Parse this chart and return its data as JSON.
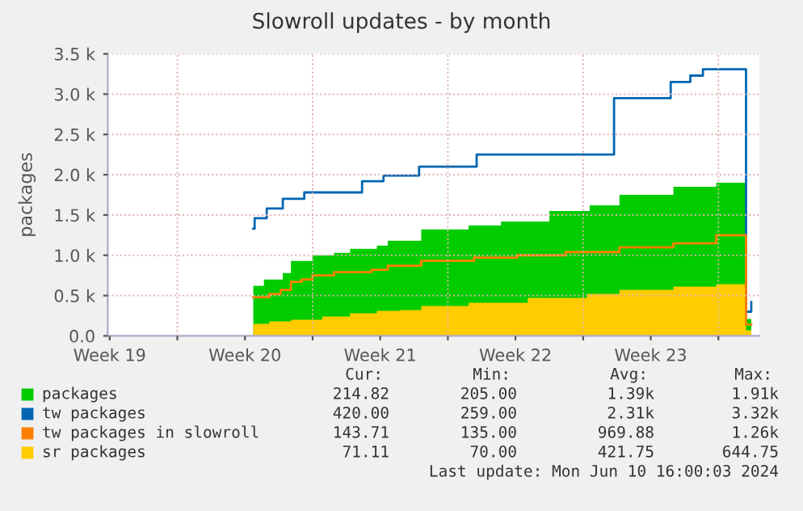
{
  "chart_data": {
    "type": "area",
    "title": "Slowroll updates - by month",
    "ylabel": "packages",
    "xlim": [
      "2024-05-09T09:35",
      "2024-06-12T02:55"
    ],
    "ylim": [
      0,
      3500
    ],
    "xticks": [
      {
        "value": "2024-05-09T12:00",
        "label": "Week 19"
      },
      {
        "value": "2024-05-13T00:00",
        "label": null
      },
      {
        "value": "2024-05-16T12:00",
        "label": "Week 20"
      },
      {
        "value": "2024-05-20T00:00",
        "label": null
      },
      {
        "value": "2024-05-23T12:00",
        "label": "Week 21"
      },
      {
        "value": "2024-05-27T00:00",
        "label": null
      },
      {
        "value": "2024-05-30T12:00",
        "label": "Week 22"
      },
      {
        "value": "2024-06-03T00:00",
        "label": null
      },
      {
        "value": "2024-06-06T12:00",
        "label": "Week 23"
      },
      {
        "value": "2024-06-10T00:00",
        "label": null
      }
    ],
    "yticks": [
      {
        "value": 0,
        "label": "0.0"
      },
      {
        "value": 500,
        "label": "0.5 k"
      },
      {
        "value": 1000,
        "label": "1.0 k"
      },
      {
        "value": 1500,
        "label": "1.5 k"
      },
      {
        "value": 2000,
        "label": "2.0 k"
      },
      {
        "value": 2500,
        "label": "2.5 k"
      },
      {
        "value": 3000,
        "label": "3.0 k"
      },
      {
        "value": 3500,
        "label": "3.5 k"
      }
    ],
    "grid": true,
    "legend": "bottom",
    "series": [
      {
        "name": "packages",
        "color": "#00cc00",
        "x": [
          "2024-05-16T22:20",
          "2024-05-17T11:30",
          "2024-05-18T11:00",
          "2024-05-18T21:05",
          "2024-05-19T23:45",
          "2024-05-21T02:40",
          "2024-05-21T22:35",
          "2024-05-23T07:55",
          "2024-05-23T21:20",
          "2024-05-25T14:55",
          "2024-05-28T01:40",
          "2024-05-29T18:00",
          "2024-06-01T06:00",
          "2024-06-03T08:10",
          "2024-06-04T21:05",
          "2024-06-07T16:05",
          "2024-06-09T21:20",
          "2024-06-11T10:20",
          "2024-06-11T16:50"
        ],
        "values": [
          620,
          700,
          780,
          930,
          1000,
          1030,
          1080,
          1120,
          1180,
          1320,
          1370,
          1420,
          1550,
          1620,
          1750,
          1850,
          1900,
          210,
          210
        ]
      },
      {
        "name": "tw packages",
        "type": "step",
        "color": "#0066b3",
        "x": [
          "2024-05-16T22:20",
          "2024-05-17T00:00",
          "2024-05-17T15:00",
          "2024-05-18T11:00",
          "2024-05-19T13:40",
          "2024-05-22T13:25",
          "2024-05-23T16:05",
          "2024-05-25T12:15",
          "2024-05-28T11:45",
          "2024-06-04T14:25",
          "2024-06-07T12:45",
          "2024-06-08T13:10",
          "2024-06-09T04:50",
          "2024-06-11T10:20",
          "2024-06-11T16:50"
        ],
        "values": [
          1330,
          1460,
          1580,
          1700,
          1780,
          1920,
          1990,
          2100,
          2250,
          2950,
          3150,
          3230,
          3310,
          300,
          420
        ]
      },
      {
        "name": "tw packages in slowroll",
        "type": "step",
        "color": "#ff8000",
        "x": [
          "2024-05-16T22:20",
          "2024-05-17T18:15",
          "2024-05-18T08:25",
          "2024-05-18T21:05",
          "2024-05-19T10:35",
          "2024-05-19T23:45",
          "2024-05-21T02:40",
          "2024-05-23T01:10",
          "2024-05-23T21:20",
          "2024-05-25T14:55",
          "2024-05-28T08:25",
          "2024-05-30T13:55",
          "2024-06-02T02:10",
          "2024-06-04T21:05",
          "2024-06-07T16:05",
          "2024-06-09T21:20",
          "2024-06-11T10:20",
          "2024-06-11T16:50"
        ],
        "values": [
          480,
          520,
          570,
          670,
          700,
          750,
          790,
          820,
          870,
          930,
          970,
          1000,
          1040,
          1100,
          1150,
          1250,
          140,
          140
        ]
      },
      {
        "name": "sr packages",
        "color": "#ffcc00",
        "x": [
          "2024-05-16T22:20",
          "2024-05-17T18:15",
          "2024-05-18T21:05",
          "2024-05-20T12:00",
          "2024-05-21T22:35",
          "2024-05-23T07:55",
          "2024-05-24T12:00",
          "2024-05-25T14:55",
          "2024-05-28T01:40",
          "2024-05-31T03:20",
          "2024-06-03T04:50",
          "2024-06-04T21:05",
          "2024-06-07T16:05",
          "2024-06-09T21:20",
          "2024-06-11T10:20",
          "2024-06-11T16:50"
        ],
        "values": [
          150,
          180,
          200,
          240,
          280,
          310,
          320,
          370,
          410,
          470,
          520,
          570,
          610,
          640,
          70,
          70
        ]
      }
    ],
    "annotations": [
      "Cur:",
      "Min:",
      "Avg:",
      "Max:",
      "214.82",
      "205.00",
      "1.39k",
      "1.91k",
      "420.00",
      "259.00",
      "2.31k",
      "3.32k",
      "143.71",
      "135.00",
      "969.88",
      "1.26k",
      "71.11",
      "70.00",
      "421.75",
      "644.75",
      "Last update: Mon Jun 10 16:00:03 2024"
    ]
  }
}
